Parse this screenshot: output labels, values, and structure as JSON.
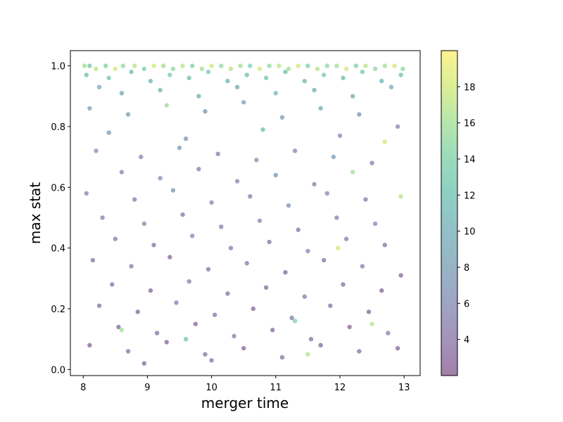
{
  "chart_data": {
    "type": "scatter",
    "title": "",
    "xlabel": "merger time",
    "ylabel": "max stat",
    "xlim": [
      7.8,
      13.25
    ],
    "ylim": [
      -0.02,
      1.05
    ],
    "x_ticks": [
      8,
      9,
      10,
      11,
      12,
      13
    ],
    "x_tick_labels": [
      "8",
      "9",
      "10",
      "11",
      "12",
      "13"
    ],
    "y_ticks": [
      0.0,
      0.2,
      0.4,
      0.6,
      0.8,
      1.0
    ],
    "y_tick_labels": [
      "0.0",
      "0.2",
      "0.4",
      "0.6",
      "0.8",
      "1.0"
    ],
    "grid": false,
    "marker_alpha": 0.5,
    "colormap": "viridis",
    "colorbar": {
      "min": 2,
      "max": 20,
      "ticks": [
        4,
        6,
        8,
        10,
        12,
        14,
        16,
        18
      ],
      "tick_labels": [
        "4",
        "6",
        "8",
        "10",
        "12",
        "14",
        "16",
        "18"
      ],
      "stops": [
        "#440154",
        "#482878",
        "#3e4989",
        "#31688e",
        "#26828e",
        "#1f9e89",
        "#35b779",
        "#6ece58",
        "#b5de2b",
        "#fde725"
      ]
    },
    "points": [
      [
        8.02,
        1.0,
        16
      ],
      [
        8.1,
        1.0,
        13
      ],
      [
        8.2,
        0.99,
        17
      ],
      [
        8.35,
        1.0,
        14
      ],
      [
        8.5,
        0.99,
        18
      ],
      [
        8.62,
        1.0,
        15
      ],
      [
        8.8,
        1.0,
        17
      ],
      [
        8.95,
        0.99,
        14
      ],
      [
        9.1,
        1.0,
        18
      ],
      [
        9.25,
        1.0,
        16
      ],
      [
        9.4,
        0.99,
        15
      ],
      [
        9.55,
        1.0,
        17
      ],
      [
        9.7,
        1.0,
        14
      ],
      [
        9.85,
        0.99,
        16
      ],
      [
        10.0,
        1.0,
        18
      ],
      [
        10.15,
        1.0,
        15
      ],
      [
        10.3,
        0.99,
        17
      ],
      [
        10.45,
        1.0,
        16
      ],
      [
        10.6,
        1.0,
        14
      ],
      [
        10.75,
        0.99,
        18
      ],
      [
        10.9,
        1.0,
        15
      ],
      [
        11.05,
        1.0,
        17
      ],
      [
        11.2,
        0.99,
        16
      ],
      [
        11.35,
        1.0,
        18
      ],
      [
        11.5,
        1.0,
        14
      ],
      [
        11.65,
        0.99,
        17
      ],
      [
        11.8,
        1.0,
        15
      ],
      [
        11.95,
        1.0,
        16
      ],
      [
        12.1,
        0.99,
        18
      ],
      [
        12.25,
        1.0,
        14
      ],
      [
        12.4,
        1.0,
        17
      ],
      [
        12.55,
        0.99,
        15
      ],
      [
        12.7,
        1.0,
        16
      ],
      [
        12.85,
        1.0,
        18
      ],
      [
        12.98,
        0.99,
        15
      ],
      [
        8.05,
        0.97,
        12
      ],
      [
        8.4,
        0.96,
        13
      ],
      [
        8.75,
        0.98,
        12
      ],
      [
        9.05,
        0.95,
        11
      ],
      [
        9.35,
        0.97,
        13
      ],
      [
        9.65,
        0.96,
        12
      ],
      [
        9.95,
        0.98,
        13
      ],
      [
        10.25,
        0.95,
        11
      ],
      [
        10.55,
        0.97,
        12
      ],
      [
        10.85,
        0.96,
        13
      ],
      [
        11.15,
        0.98,
        12
      ],
      [
        11.45,
        0.95,
        11
      ],
      [
        11.75,
        0.97,
        13
      ],
      [
        12.05,
        0.96,
        12
      ],
      [
        12.35,
        0.98,
        13
      ],
      [
        12.65,
        0.95,
        11
      ],
      [
        12.95,
        0.97,
        12
      ],
      [
        8.25,
        0.93,
        10
      ],
      [
        8.6,
        0.91,
        9
      ],
      [
        9.2,
        0.92,
        11
      ],
      [
        9.8,
        0.9,
        10
      ],
      [
        10.4,
        0.93,
        9
      ],
      [
        11.0,
        0.91,
        11
      ],
      [
        11.6,
        0.92,
        10
      ],
      [
        12.2,
        0.9,
        9
      ],
      [
        12.8,
        0.93,
        10
      ],
      [
        8.1,
        0.86,
        9
      ],
      [
        8.7,
        0.84,
        8
      ],
      [
        9.3,
        0.87,
        16
      ],
      [
        9.9,
        0.85,
        7
      ],
      [
        10.5,
        0.88,
        9
      ],
      [
        11.1,
        0.83,
        8
      ],
      [
        11.7,
        0.86,
        10
      ],
      [
        12.3,
        0.84,
        7
      ],
      [
        12.9,
        0.8,
        6
      ],
      [
        8.4,
        0.78,
        8
      ],
      [
        9.6,
        0.76,
        7
      ],
      [
        10.8,
        0.79,
        12
      ],
      [
        12.0,
        0.77,
        6
      ],
      [
        12.7,
        0.75,
        18
      ],
      [
        8.2,
        0.72,
        7
      ],
      [
        8.9,
        0.7,
        6
      ],
      [
        9.5,
        0.73,
        8
      ],
      [
        10.1,
        0.71,
        5
      ],
      [
        10.7,
        0.69,
        7
      ],
      [
        11.3,
        0.72,
        6
      ],
      [
        11.9,
        0.7,
        8
      ],
      [
        12.5,
        0.68,
        5
      ],
      [
        8.6,
        0.65,
        6
      ],
      [
        9.2,
        0.63,
        7
      ],
      [
        9.8,
        0.66,
        5
      ],
      [
        10.4,
        0.62,
        6
      ],
      [
        11.0,
        0.64,
        7
      ],
      [
        11.6,
        0.61,
        5
      ],
      [
        12.2,
        0.65,
        16
      ],
      [
        12.95,
        0.57,
        17
      ],
      [
        8.05,
        0.58,
        6
      ],
      [
        8.8,
        0.56,
        5
      ],
      [
        9.4,
        0.59,
        7
      ],
      [
        10.0,
        0.55,
        6
      ],
      [
        10.6,
        0.57,
        5
      ],
      [
        11.2,
        0.54,
        7
      ],
      [
        11.8,
        0.58,
        6
      ],
      [
        12.4,
        0.56,
        5
      ],
      [
        8.3,
        0.5,
        5
      ],
      [
        8.95,
        0.48,
        6
      ],
      [
        9.55,
        0.51,
        4
      ],
      [
        10.15,
        0.47,
        5
      ],
      [
        10.75,
        0.49,
        6
      ],
      [
        11.35,
        0.46,
        4
      ],
      [
        11.95,
        0.5,
        5
      ],
      [
        12.55,
        0.48,
        6
      ],
      [
        8.5,
        0.43,
        5
      ],
      [
        9.1,
        0.41,
        4
      ],
      [
        9.7,
        0.44,
        6
      ],
      [
        10.3,
        0.4,
        5
      ],
      [
        10.9,
        0.42,
        4
      ],
      [
        11.5,
        0.39,
        6
      ],
      [
        12.1,
        0.43,
        5
      ],
      [
        12.7,
        0.41,
        4
      ],
      [
        11.97,
        0.4,
        18
      ],
      [
        8.15,
        0.36,
        4
      ],
      [
        8.75,
        0.34,
        5
      ],
      [
        9.35,
        0.37,
        3
      ],
      [
        9.95,
        0.33,
        4
      ],
      [
        10.55,
        0.35,
        5
      ],
      [
        11.15,
        0.32,
        3
      ],
      [
        11.75,
        0.36,
        4
      ],
      [
        12.35,
        0.34,
        5
      ],
      [
        12.95,
        0.31,
        3
      ],
      [
        8.45,
        0.28,
        4
      ],
      [
        9.05,
        0.26,
        3
      ],
      [
        9.65,
        0.29,
        5
      ],
      [
        10.25,
        0.25,
        4
      ],
      [
        10.85,
        0.27,
        3
      ],
      [
        11.45,
        0.24,
        5
      ],
      [
        12.05,
        0.28,
        4
      ],
      [
        12.65,
        0.26,
        3
      ],
      [
        8.25,
        0.21,
        4
      ],
      [
        8.85,
        0.19,
        3
      ],
      [
        9.45,
        0.22,
        5
      ],
      [
        10.05,
        0.18,
        4
      ],
      [
        10.65,
        0.2,
        3
      ],
      [
        11.25,
        0.17,
        5
      ],
      [
        11.85,
        0.21,
        4
      ],
      [
        12.45,
        0.19,
        3
      ],
      [
        8.55,
        0.14,
        3
      ],
      [
        9.15,
        0.12,
        4
      ],
      [
        9.75,
        0.15,
        3
      ],
      [
        10.35,
        0.11,
        5
      ],
      [
        10.95,
        0.13,
        3
      ],
      [
        11.55,
        0.1,
        4
      ],
      [
        12.15,
        0.14,
        3
      ],
      [
        12.75,
        0.12,
        5
      ],
      [
        8.1,
        0.08,
        3
      ],
      [
        8.7,
        0.06,
        4
      ],
      [
        9.3,
        0.09,
        3
      ],
      [
        9.9,
        0.05,
        4
      ],
      [
        10.5,
        0.07,
        3
      ],
      [
        11.1,
        0.04,
        4
      ],
      [
        11.7,
        0.08,
        3
      ],
      [
        12.3,
        0.06,
        4
      ],
      [
        12.9,
        0.07,
        3
      ],
      [
        8.95,
        0.02,
        3
      ],
      [
        10.0,
        0.03,
        4
      ],
      [
        11.5,
        0.05,
        17
      ],
      [
        8.6,
        0.13,
        16
      ],
      [
        12.5,
        0.15,
        17
      ],
      [
        9.6,
        0.1,
        13
      ],
      [
        11.3,
        0.16,
        14
      ]
    ]
  }
}
